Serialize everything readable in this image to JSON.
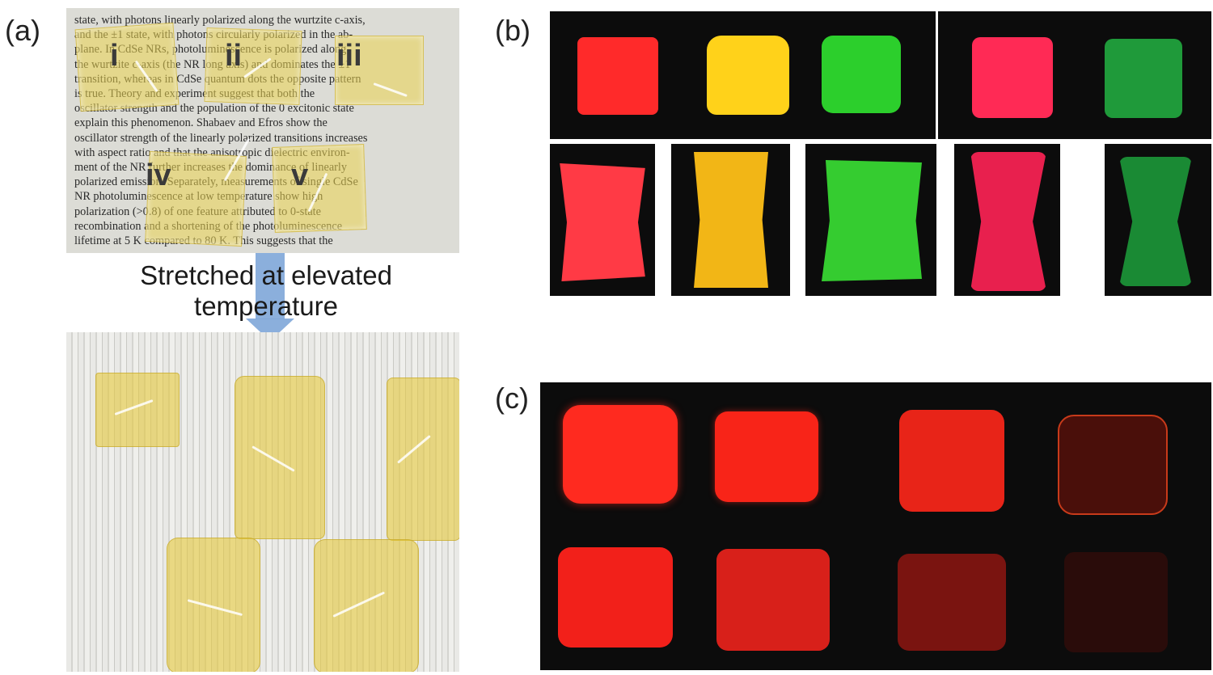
{
  "panel_labels": {
    "a": "(a)",
    "b": "(b)",
    "c": "(c)"
  },
  "panel_a": {
    "film_labels": [
      "i",
      "ii",
      "iii",
      "iv",
      "v"
    ],
    "caption_line1": "Stretched at elevated",
    "caption_line2": "temperature",
    "text_lines": [
      "state, with photons linearly polarized along the wurtzite c-axis,",
      "and the ±1 state, with photons circularly polarized in the ab-",
      "plane. In CdSe NRs, photoluminescence is polarized along",
      "the wurtzite c-axis (the NR long axis) and dominates the ±1",
      "transition, whereas in CdSe quantum dots the opposite pattern",
      "is true. Theory and experiment suggest that both the",
      "oscillator strength and the population of the 0 excitonic state",
      "explain this phenomenon. Shabaev and Efros show the",
      "oscillator strength of the linearly polarized transitions increases",
      "with aspect ratio and that the anisotropic dielectric environ-",
      "ment of the NR further increases the dominance of linearly",
      "polarized emission. Separately, measurements of single CdSe",
      "NR photoluminescence at low temperature show high",
      "polarization (>0.8) of one feature attributed to 0-state",
      "recombination and a shortening of the photoluminescence",
      "lifetime at 5 K compared to 80 K. This suggests that the"
    ]
  },
  "colors": {
    "red": "#ff2a2a",
    "yellow": "#ffd21a",
    "green": "#2ccf2c",
    "pink": "#ff2a55",
    "dark_green": "#1f9a3a",
    "film_yellow": "#ebd450",
    "arrow_blue": "#7ea6d8",
    "dark_bg": "#0c0c0c"
  }
}
